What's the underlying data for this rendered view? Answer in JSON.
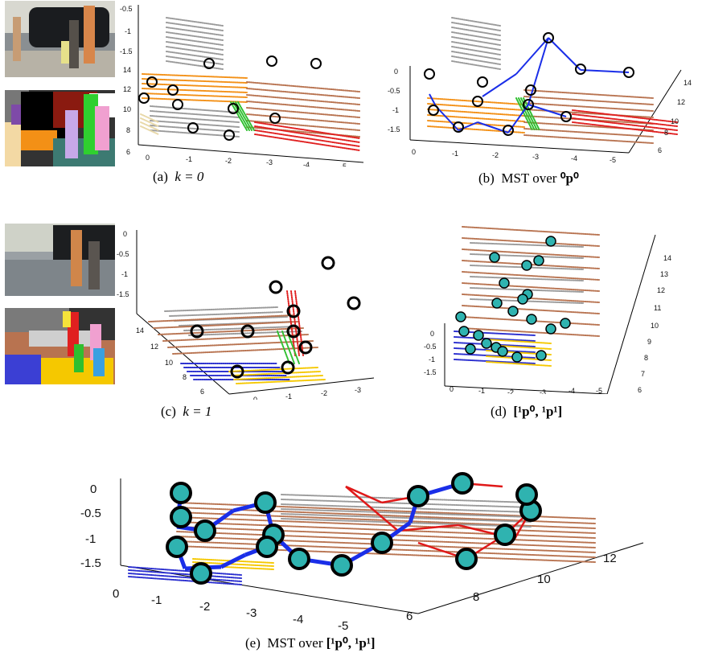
{
  "figure": {
    "panels": [
      {
        "id": "a",
        "caption_prefix": "(a)",
        "caption_math": "k = 0"
      },
      {
        "id": "b",
        "caption_prefix": "(b)",
        "caption_text": "MST over",
        "caption_math": "⁰p⁰"
      },
      {
        "id": "c",
        "caption_prefix": "(c)",
        "caption_math": "k = 1"
      },
      {
        "id": "d",
        "caption_prefix": "(d)",
        "caption_math": "[¹p⁰, ¹p¹]"
      },
      {
        "id": "e",
        "caption_prefix": "(e)",
        "caption_text": "MST over",
        "caption_math": "[¹p⁰, ¹p¹]"
      }
    ],
    "ticks": {
      "a_y": [
        "-0.5",
        "-1",
        "-1.5",
        "14",
        "12",
        "10",
        "8",
        "6"
      ],
      "a_x": [
        "0",
        "-1",
        "-2",
        "-3",
        "-4",
        "-5"
      ],
      "b_y": [
        "0",
        "-0.5",
        "-1",
        "-1.5"
      ],
      "b_x": [
        "0",
        "-1",
        "-2",
        "-3",
        "-4",
        "-5"
      ],
      "b_z": [
        "14",
        "12",
        "10",
        "8",
        "6"
      ],
      "c_y": [
        "0",
        "-0.5",
        "-1",
        "-1.5"
      ],
      "c_z": [
        "14",
        "12",
        "10",
        "8",
        "6"
      ],
      "c_x": [
        "0",
        "-1",
        "-2",
        "-3"
      ],
      "d_y": [
        "0",
        "-0.5",
        "-1",
        "-1.5"
      ],
      "d_x": [
        "0",
        "-1",
        "-2",
        "-3",
        "-4",
        "-5"
      ],
      "d_z": [
        "14",
        "13",
        "12",
        "11",
        "10",
        "9",
        "8",
        "7",
        "6"
      ],
      "e_y": [
        "0",
        "-0.5",
        "-1",
        "-1.5"
      ],
      "e_x": [
        "0",
        "-1",
        "-2",
        "-3",
        "-4",
        "-5"
      ],
      "e_z": [
        "6",
        "8",
        "10",
        "12"
      ]
    },
    "colors": {
      "orange": "#f39016",
      "gray": "#9a9a9a",
      "brown": "#b87350",
      "blue": "#2a2ecf",
      "red": "#e02020",
      "green": "#2fbf2f",
      "lime": "#b8e02f",
      "pink": "#f0a0d0",
      "magenta": "#e070e0",
      "yellow": "#f5c800",
      "tan": "#e8d8a8",
      "teal": "#2fb3b0",
      "mst_blue": "#1a2ee8",
      "mst_red": "#e01818"
    }
  }
}
